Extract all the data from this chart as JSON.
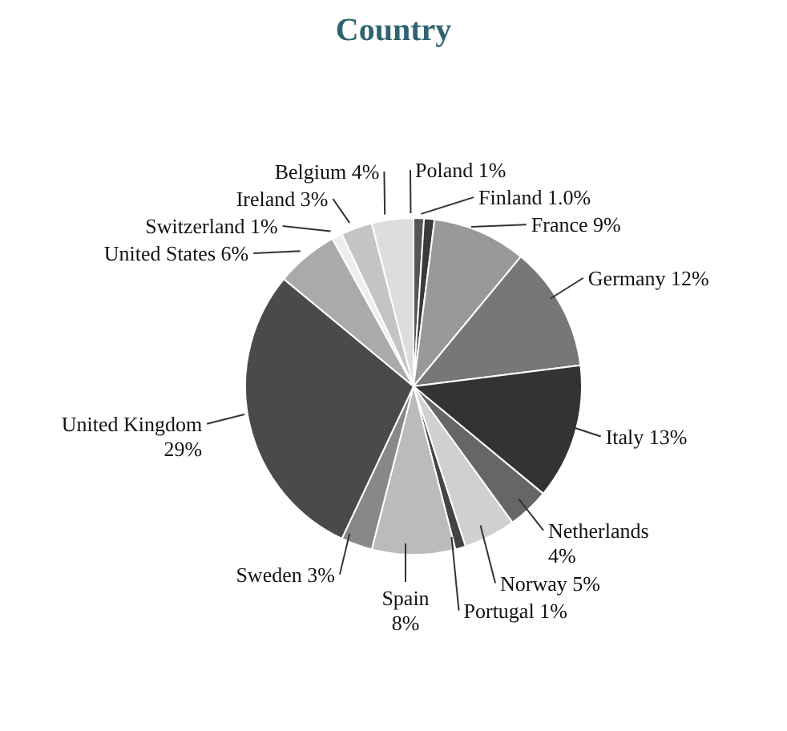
{
  "chart_data": {
    "type": "pie",
    "title": "Country",
    "categories": [
      "Poland",
      "Finland",
      "France",
      "Germany",
      "Italy",
      "Netherlands",
      "Norway",
      "Portugal",
      "Spain",
      "Sweden",
      "United Kingdom",
      "United States",
      "Switzerland",
      "Ireland",
      "Belgium"
    ],
    "values": [
      1,
      1.0,
      9,
      12,
      13,
      4,
      5,
      1,
      8,
      3,
      29,
      6,
      1,
      3,
      4
    ],
    "value_labels": [
      "1%",
      "1.0%",
      "9%",
      "12%",
      "13%",
      "4%",
      "5%",
      "1%",
      "8%",
      "3%",
      "29%",
      "6%",
      "1%",
      "3%",
      "4%"
    ],
    "colors": [
      "#555555",
      "#3a3a3a",
      "#999999",
      "#777777",
      "#333333",
      "#666666",
      "#d0d0d0",
      "#444444",
      "#bbbbbb",
      "#888888",
      "#4a4a4a",
      "#aaaaaa",
      "#eeeeee",
      "#c4c4c4",
      "#dddddd"
    ]
  }
}
